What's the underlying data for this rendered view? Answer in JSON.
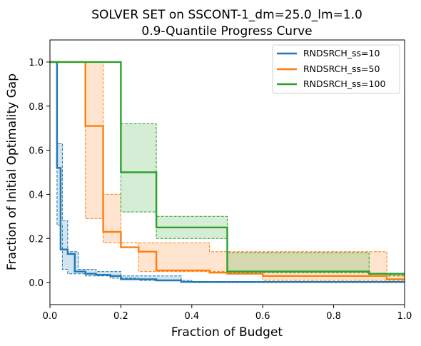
{
  "chart_data": {
    "type": "line",
    "title": "SOLVER SET on SSCONT-1_dm=25.0_lm=1.0",
    "subtitle": "0.9-Quantile Progress Curve",
    "xlabel": "Fraction of Budget",
    "ylabel": "Fraction of Initial Optimality Gap",
    "xlim": [
      0,
      1
    ],
    "ylim": [
      -0.1,
      1.1
    ],
    "xticks": [
      "0.0",
      "0.2",
      "0.4",
      "0.6",
      "0.8",
      "1.0"
    ],
    "yticks": [
      "0.0",
      "0.2",
      "0.4",
      "0.6",
      "0.8",
      "1.0"
    ],
    "legend_position": "top-right",
    "grid": false,
    "series": [
      {
        "name": "RNDSRCH_ss=10",
        "color": "#1f77b4",
        "x": [
          0,
          0.02,
          0.02,
          0.03,
          0.03,
          0.05,
          0.05,
          0.07,
          0.07,
          0.1,
          0.1,
          0.13,
          0.13,
          0.17,
          0.17,
          0.2,
          0.2,
          0.3,
          0.3,
          0.37,
          0.37,
          0.5,
          0.5,
          1.0
        ],
        "y": [
          1.0,
          1.0,
          0.52,
          0.52,
          0.15,
          0.15,
          0.13,
          0.13,
          0.05,
          0.05,
          0.04,
          0.04,
          0.035,
          0.035,
          0.03,
          0.03,
          0.015,
          0.015,
          0.01,
          0.01,
          0.003,
          0.003,
          0.003,
          0.003
        ],
        "band_upper_x": [
          0,
          0.02,
          0.02,
          0.035,
          0.035,
          0.05,
          0.05,
          0.08,
          0.08,
          0.13,
          0.13,
          0.2,
          0.2,
          0.37,
          0.37,
          1.0
        ],
        "band_upper_y": [
          1.0,
          1.0,
          0.63,
          0.63,
          0.28,
          0.28,
          0.14,
          0.14,
          0.06,
          0.06,
          0.05,
          0.05,
          0.03,
          0.03,
          0.005,
          0.005
        ],
        "band_lower_x": [
          0,
          0.02,
          0.02,
          0.035,
          0.035,
          0.05,
          0.05,
          0.1,
          0.1,
          0.17,
          0.17,
          0.25,
          0.25,
          0.4,
          0.4,
          1.0
        ],
        "band_lower_y": [
          1.0,
          1.0,
          0.26,
          0.26,
          0.06,
          0.06,
          0.04,
          0.04,
          0.03,
          0.03,
          0.02,
          0.02,
          0.01,
          0.01,
          0.0,
          0.0
        ]
      },
      {
        "name": "RNDSRCH_ss=50",
        "color": "#ff7f0e",
        "x": [
          0,
          0.1,
          0.1,
          0.15,
          0.15,
          0.2,
          0.2,
          0.25,
          0.25,
          0.3,
          0.3,
          0.45,
          0.45,
          0.5,
          0.5,
          0.6,
          0.6,
          0.95,
          0.95,
          1.0
        ],
        "y": [
          1.0,
          1.0,
          0.71,
          0.71,
          0.23,
          0.23,
          0.16,
          0.16,
          0.14,
          0.14,
          0.055,
          0.055,
          0.045,
          0.045,
          0.04,
          0.04,
          0.03,
          0.03,
          0.015,
          0.015
        ],
        "band_upper_x": [
          0,
          0.15,
          0.15,
          0.2,
          0.2,
          0.45,
          0.45,
          0.95,
          0.95,
          1.0
        ],
        "band_upper_y": [
          1.0,
          1.0,
          0.4,
          0.4,
          0.18,
          0.18,
          0.14,
          0.14,
          0.035,
          0.035
        ],
        "band_lower_x": [
          0,
          0.1,
          0.1,
          0.15,
          0.15,
          0.25,
          0.25,
          0.6,
          0.6,
          1.0
        ],
        "band_lower_y": [
          1.0,
          1.0,
          0.29,
          0.29,
          0.18,
          0.18,
          0.05,
          0.05,
          0.01,
          0.01
        ]
      },
      {
        "name": "RNDSRCH_ss=100",
        "color": "#2ca02c",
        "x": [
          0,
          0.2,
          0.2,
          0.3,
          0.3,
          0.5,
          0.5,
          0.9,
          0.9,
          1.0
        ],
        "y": [
          1.0,
          1.0,
          0.5,
          0.5,
          0.25,
          0.25,
          0.05,
          0.05,
          0.04,
          0.04
        ],
        "band_upper_x": [
          0,
          0.2,
          0.2,
          0.3,
          0.3,
          0.5,
          0.5,
          0.9,
          0.9,
          1.0
        ],
        "band_upper_y": [
          1.0,
          1.0,
          0.72,
          0.72,
          0.3,
          0.3,
          0.135,
          0.135,
          0.04,
          0.04
        ],
        "band_lower_x": [
          0,
          0.2,
          0.2,
          0.3,
          0.3,
          0.5,
          0.5,
          0.9,
          0.9,
          1.0
        ],
        "band_lower_y": [
          1.0,
          1.0,
          0.32,
          0.32,
          0.2,
          0.2,
          0.045,
          0.045,
          0.03,
          0.03
        ]
      }
    ]
  }
}
